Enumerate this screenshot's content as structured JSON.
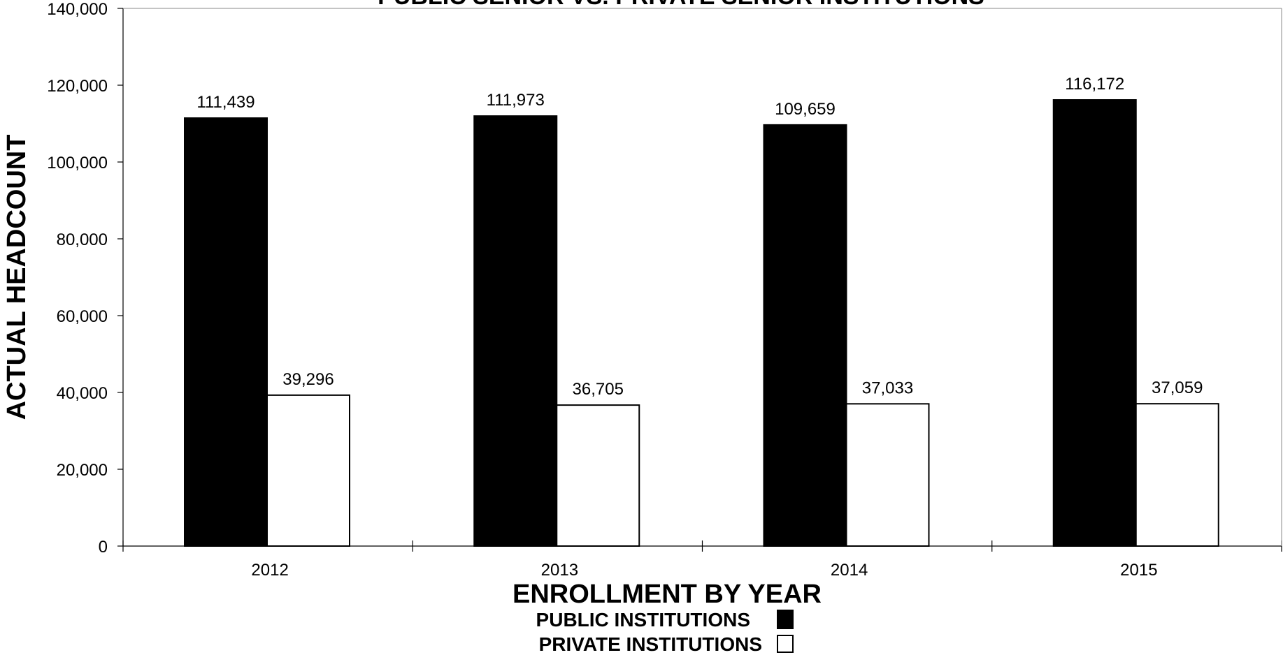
{
  "chart_data": {
    "type": "bar",
    "title": "PUBLIC SENIOR VS. PRIVATE SENIOR INSTITUTIONS",
    "xlabel": "ENROLLMENT BY YEAR",
    "ylabel": "ACTUAL HEADCOUNT",
    "categories": [
      "2012",
      "2013",
      "2014",
      "2015"
    ],
    "series": [
      {
        "name": "PUBLIC INSTITUTIONS",
        "color": "#000000",
        "values": [
          111439,
          111973,
          109659,
          116172
        ]
      },
      {
        "name": "PRIVATE INSTITUTIONS",
        "color": "#ffffff",
        "values": [
          39296,
          36705,
          37033,
          37059
        ]
      }
    ],
    "data_labels": [
      [
        "111,439",
        "111,973",
        "109,659",
        "116,172"
      ],
      [
        "39,296",
        "36,705",
        "37,033",
        "37,059"
      ]
    ],
    "ylim": [
      0,
      140000
    ],
    "yticks": [
      0,
      20000,
      40000,
      60000,
      80000,
      100000,
      120000,
      140000
    ],
    "ytick_labels": [
      "0",
      "20,000",
      "40,000",
      "60,000",
      "80,000",
      "100,000",
      "120,000",
      "140,000"
    ],
    "grid": false,
    "legend_position": "bottom"
  }
}
